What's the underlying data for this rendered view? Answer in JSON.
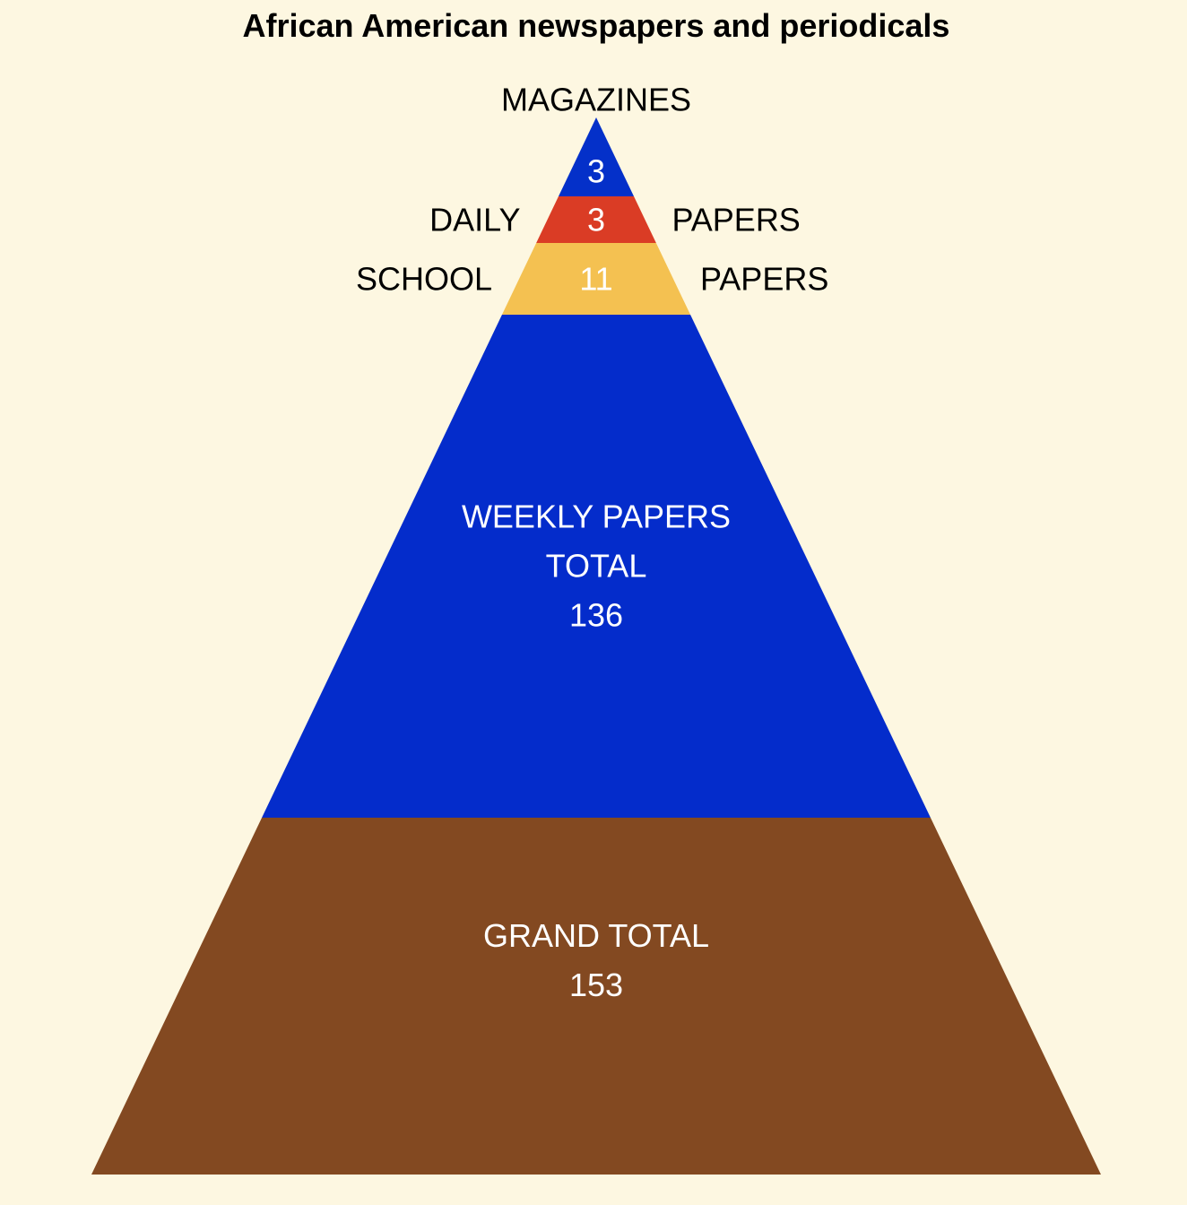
{
  "chart_data": {
    "type": "pyramid",
    "title": "African American newspapers and periodicals",
    "background_color": "#fdf7e1",
    "segments": [
      {
        "category": "MAGAZINES",
        "value": 3,
        "value_label": "3",
        "color": "#0430c9",
        "label_color": "#ffffff",
        "outside_top_label": "MAGAZINES",
        "outside_left_label": "",
        "outside_right_label": "",
        "inside_lines": [
          "3"
        ]
      },
      {
        "category": "DAILY PAPERS",
        "value": 3,
        "value_label": "3",
        "color": "#da3c25",
        "label_color": "#ffffff",
        "outside_top_label": "",
        "outside_left_label": "DAILY",
        "outside_right_label": "PAPERS",
        "inside_lines": [
          "3"
        ]
      },
      {
        "category": "SCHOOL PAPERS",
        "value": 11,
        "value_label": "11",
        "color": "#f4c151",
        "label_color": "#ffffff",
        "outside_top_label": "",
        "outside_left_label": "SCHOOL",
        "outside_right_label": "PAPERS",
        "inside_lines": [
          "11"
        ]
      },
      {
        "category": "WEEKLY PAPERS TOTAL",
        "value": 136,
        "value_label": "136",
        "color": "#042ccb",
        "label_color": "#ffffff",
        "outside_top_label": "",
        "outside_left_label": "",
        "outside_right_label": "",
        "inside_lines": [
          "WEEKLY PAPERS",
          "TOTAL",
          "136"
        ]
      },
      {
        "category": "GRAND TOTAL",
        "value": 153,
        "value_label": "153",
        "color": "#834921",
        "label_color": "#ffffff",
        "outside_top_label": "",
        "outside_left_label": "",
        "outside_right_label": "",
        "inside_lines": [
          "GRAND TOTAL",
          "153"
        ]
      }
    ]
  }
}
